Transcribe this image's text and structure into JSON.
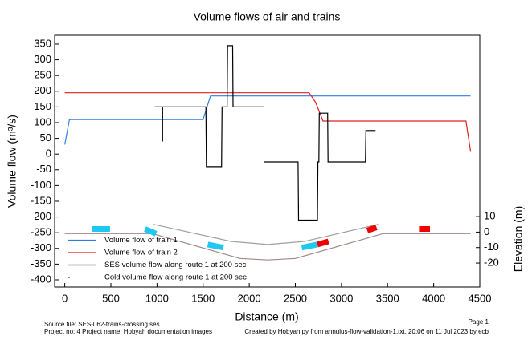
{
  "chart_data": {
    "type": "line",
    "title": "Volume flows of air and trains",
    "x_label": "Distance (m)",
    "y_label": "Volume flow (m³/s)",
    "y2_label": "Elevation (m)",
    "xlim": [
      -110,
      4500
    ],
    "xticks": [
      0,
      500,
      1000,
      1500,
      2000,
      2500,
      3000,
      3500,
      4000,
      4500
    ],
    "ylim": [
      -423,
      378
    ],
    "yticks": [
      350,
      300,
      250,
      200,
      150,
      100,
      50,
      0,
      -50,
      -100,
      -150,
      -200,
      -250,
      -300,
      -350,
      -400
    ],
    "y2lim": [
      -35.5,
      127
    ],
    "y2ticks": [
      10,
      0,
      -10,
      -20
    ],
    "grid": false,
    "legend": "lower left",
    "series": [
      {
        "name": "Volume flow of train 1",
        "color": "#2f7fe0",
        "x": [
          0,
          50,
          1500,
          1580,
          4400
        ],
        "values": [
          30,
          110,
          110,
          185,
          185
        ]
      },
      {
        "name": "Volume flow of train 2",
        "color": "#e02020",
        "x": [
          0,
          2650,
          2720,
          2800,
          4350,
          4400
        ],
        "values": [
          195,
          195,
          165,
          105,
          105,
          10
        ]
      },
      {
        "name": "SES volume flow along route 1 at 200 sec",
        "color": "#000000",
        "x": [
          975,
          1530,
          1535,
          1700,
          1705,
          1760,
          1765,
          1820,
          1825,
          2160,
          null,
          1060,
          1060,
          null,
          2160,
          2530,
          2535,
          2740,
          2745,
          2755,
          2760,
          2850,
          2855,
          3260,
          3265,
          3370
        ],
        "values": [
          150,
          150,
          -40,
          -40,
          150,
          150,
          345,
          345,
          150,
          150,
          null,
          40,
          150,
          null,
          -25,
          -25,
          -210,
          -210,
          -25,
          -25,
          130,
          130,
          -25,
          -25,
          75,
          75
        ]
      },
      {
        "name": "Cold volume flow along route 1 at 200 sec",
        "color": "#000000",
        "x": [],
        "values": []
      },
      {
        "axis": "y2",
        "color": "#a08888",
        "x": [
          0,
          950,
          1900,
          2200,
          2500,
          3450,
          4400
        ],
        "values": [
          -1,
          -1,
          -17,
          -18,
          -17,
          -1,
          -1
        ]
      },
      {
        "axis": "y2",
        "color": "#a0a0a0",
        "x": [
          960,
          1800,
          2200,
          2600,
          3400
        ],
        "values": [
          5,
          -6,
          -8,
          -6,
          5
        ]
      },
      {
        "axis": "y2",
        "style": "block",
        "color": "#1ec8f0",
        "x": [
          300,
          490
        ],
        "values": [
          2,
          2
        ]
      },
      {
        "axis": "y2",
        "style": "block",
        "color": "#1ec8f0",
        "x": [
          870,
          990
        ],
        "values": [
          2,
          -1
        ]
      },
      {
        "axis": "y2",
        "style": "block",
        "color": "#1ec8f0",
        "x": [
          1550,
          1720
        ],
        "values": [
          -8,
          -10
        ]
      },
      {
        "axis": "y2",
        "style": "block",
        "color": "#1ec8f0",
        "x": [
          2570,
          2740
        ],
        "values": [
          -10,
          -8
        ]
      },
      {
        "axis": "y2",
        "style": "block",
        "color": "#f00000",
        "x": [
          2740,
          2860
        ],
        "values": [
          -8,
          -6
        ]
      },
      {
        "axis": "y2",
        "style": "block",
        "color": "#f00000",
        "x": [
          3280,
          3380
        ],
        "values": [
          1,
          3
        ]
      },
      {
        "axis": "y2",
        "style": "block",
        "color": "#f00000",
        "x": [
          3850,
          3960
        ],
        "values": [
          2,
          2
        ]
      }
    ]
  },
  "footer": {
    "source": "Source file: SES-062-trains-crossing.ses.",
    "project": "Project no: 4    Project name: Hobyah documentation images",
    "page": "Page 1",
    "created": "Created by Hobyah.py from annulus-flow-validation-1.txt, 20:06 on 11 Jul 2023 by ecb"
  }
}
